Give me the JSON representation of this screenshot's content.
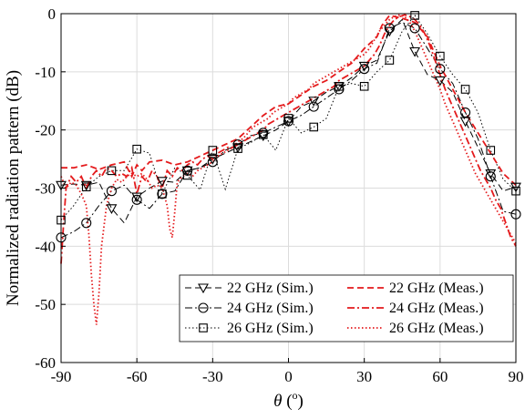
{
  "chart_data": {
    "type": "line",
    "xlabel": "θ (°)",
    "xlabel_parts": {
      "symbol": "θ",
      "unit_open": " (",
      "unit_sup": "o",
      "unit_close": ")"
    },
    "ylabel": "Normalized radiation pattern (dB)",
    "xlim": [
      -90,
      90
    ],
    "ylim": [
      -60,
      0
    ],
    "x_ticks": [
      -90,
      -60,
      -30,
      0,
      30,
      60,
      90
    ],
    "y_ticks": [
      0,
      -10,
      -20,
      -30,
      -40,
      -50,
      -60
    ],
    "grid": true,
    "legend_position": "bottom-right",
    "series": [
      {
        "name": "22 GHz (Sim.)",
        "color": "#000000",
        "dash": "dash",
        "marker": "triangle-down",
        "x": [
          -90,
          -85,
          -80,
          -75,
          -70,
          -65,
          -60,
          -55,
          -50,
          -45,
          -40,
          -35,
          -30,
          -25,
          -20,
          -15,
          -10,
          -5,
          0,
          5,
          10,
          15,
          20,
          25,
          30,
          35,
          40,
          45,
          50,
          55,
          60,
          65,
          70,
          75,
          80,
          85,
          90
        ],
        "y": [
          -29.5,
          -29.3,
          -29.5,
          -29,
          -33.5,
          -36,
          -31.5,
          -30,
          -28.8,
          -29,
          -27,
          -26.5,
          -25,
          -24,
          -23,
          -22,
          -21,
          -20,
          -18.5,
          -16,
          -15,
          -13.5,
          -12.5,
          -11,
          -9,
          -8,
          -3,
          -1,
          -6.5,
          -10.5,
          -11.5,
          -13.5,
          -18.5,
          -23,
          -27.5,
          -30.5,
          -29.8
        ]
      },
      {
        "name": "24 GHz (Sim.)",
        "color": "#000000",
        "dash": "dashdot",
        "marker": "circle",
        "x": [
          -90,
          -85,
          -80,
          -75,
          -70,
          -65,
          -60,
          -55,
          -50,
          -45,
          -40,
          -35,
          -30,
          -25,
          -20,
          -15,
          -10,
          -5,
          0,
          5,
          10,
          15,
          20,
          25,
          30,
          35,
          40,
          45,
          50,
          55,
          60,
          65,
          70,
          75,
          80,
          85,
          90
        ],
        "y": [
          -38.5,
          -37.5,
          -36,
          -33,
          -30.5,
          -29.5,
          -32,
          -33.5,
          -31,
          -30.5,
          -27,
          -26.5,
          -25.5,
          -23.5,
          -22.5,
          -21,
          -20.5,
          -19.5,
          -18.5,
          -17.5,
          -16,
          -14.5,
          -13,
          -11.5,
          -9.5,
          -8.5,
          -2.5,
          -1.5,
          -2.5,
          -6,
          -9.5,
          -12,
          -17,
          -21.5,
          -28,
          -34,
          -34.5
        ]
      },
      {
        "name": "26 GHz (Sim.)",
        "color": "#000000",
        "dash": "dot",
        "marker": "square",
        "x": [
          -90,
          -85,
          -80,
          -75,
          -70,
          -65,
          -60,
          -55,
          -50,
          -45,
          -40,
          -35,
          -30,
          -25,
          -20,
          -15,
          -10,
          -5,
          0,
          5,
          10,
          15,
          20,
          25,
          30,
          35,
          40,
          45,
          50,
          55,
          60,
          65,
          70,
          75,
          80,
          85,
          90
        ],
        "y": [
          -35.5,
          -33,
          -29.8,
          -28,
          -27,
          -27,
          -23.3,
          -24,
          -31,
          -26.5,
          -27.8,
          -30.3,
          -23.5,
          -30.2,
          -23.2,
          -22.2,
          -20.8,
          -23.5,
          -18,
          -20.5,
          -19.5,
          -18,
          -12.5,
          -12,
          -12.5,
          -10,
          -8,
          -3,
          -0.3,
          -3.5,
          -7.3,
          -10.5,
          -13,
          -17,
          -23.5,
          -28.5,
          -30.5
        ]
      },
      {
        "name": "22 GHz (Meas.)",
        "color": "#e41a1c",
        "dash": "dash",
        "marker": "none",
        "x": [
          -90,
          -85,
          -80,
          -75,
          -70,
          -65,
          -62,
          -60,
          -58,
          -55,
          -50,
          -45,
          -40,
          -35,
          -30,
          -25,
          -20,
          -15,
          -10,
          -5,
          0,
          5,
          10,
          15,
          20,
          25,
          30,
          35,
          37,
          40,
          45,
          50,
          55,
          60,
          65,
          70,
          75,
          80,
          85,
          90
        ],
        "y": [
          -26.5,
          -26.5,
          -26,
          -26.8,
          -26,
          -25.5,
          -28,
          -26,
          -27,
          -25.5,
          -25.2,
          -26,
          -25.5,
          -24.5,
          -23.5,
          -22.5,
          -21.5,
          -19.5,
          -17.5,
          -16,
          -15.5,
          -14,
          -12.5,
          -11.5,
          -10,
          -8.5,
          -6,
          -4,
          -2,
          -0.3,
          -0.8,
          -1.5,
          -4,
          -9,
          -13,
          -17,
          -20.5,
          -24,
          -27.5,
          -29.5
        ]
      },
      {
        "name": "24 GHz (Meas.)",
        "color": "#e41a1c",
        "dash": "dashdot",
        "marker": "none",
        "x": [
          -90,
          -89,
          -88,
          -86,
          -84,
          -82,
          -80,
          -78,
          -76,
          -74,
          -72,
          -70,
          -68,
          -66,
          -64,
          -62,
          -60,
          -58,
          -56,
          -54,
          -52,
          -50,
          -48,
          -46,
          -44,
          -42,
          -40,
          -38,
          -36,
          -34,
          -32,
          -30,
          -28,
          -26,
          -24,
          -22,
          -20,
          -18,
          -16,
          -14,
          -12,
          -10,
          -8,
          -6,
          -4,
          -2,
          0,
          2,
          4,
          6,
          8,
          10,
          12,
          14,
          16,
          18,
          20,
          22,
          24,
          26,
          28,
          30,
          32,
          34,
          36,
          38,
          40,
          42,
          44,
          46,
          48,
          50,
          52,
          54,
          56,
          58,
          60,
          62,
          64,
          66,
          68,
          70,
          72,
          74,
          76,
          78,
          80,
          82,
          84,
          86,
          88,
          90
        ],
        "y": [
          -43,
          -36,
          -30,
          -28,
          -29,
          -28,
          -30,
          -28,
          -27,
          -28,
          -26.5,
          -27,
          -28,
          -27.5,
          -28,
          -26.5,
          -31,
          -28,
          -29,
          -27,
          -28,
          -30,
          -27,
          -28,
          -26.5,
          -27,
          -26,
          -25.5,
          -26,
          -25,
          -24.5,
          -25,
          -24,
          -23.5,
          -23,
          -23,
          -22.5,
          -22,
          -21.5,
          -21,
          -20.5,
          -20,
          -19,
          -18.5,
          -18,
          -17.5,
          -17,
          -16.5,
          -16,
          -15.5,
          -15,
          -14.5,
          -14,
          -13.5,
          -13,
          -12.5,
          -11.5,
          -11,
          -10.5,
          -10,
          -9.5,
          -9,
          -8,
          -7,
          -5.5,
          -3.5,
          -2,
          -1,
          -0.5,
          -0.2,
          -0.5,
          -1,
          -2,
          -3.5,
          -5.5,
          -8,
          -10.5,
          -13,
          -15,
          -17,
          -19,
          -21,
          -23,
          -25,
          -27,
          -28.5,
          -30,
          -32,
          -33.5,
          -36,
          -38.5,
          -40
        ]
      },
      {
        "name": "26 GHz (Meas.)",
        "color": "#e41a1c",
        "dash": "dot",
        "marker": "none",
        "x": [
          -90,
          -88,
          -86,
          -84,
          -82,
          -80,
          -79,
          -78,
          -77,
          -76,
          -75,
          -74,
          -72,
          -70,
          -68,
          -66,
          -64,
          -62,
          -60,
          -58,
          -56,
          -54,
          -52,
          -50,
          -48,
          -47,
          -46,
          -45,
          -44,
          -42,
          -40,
          -38,
          -36,
          -34,
          -32,
          -30,
          -28,
          -26,
          -24,
          -22,
          -20,
          -18,
          -16,
          -14,
          -12,
          -10,
          -8,
          -6,
          -4,
          -2,
          0,
          2,
          4,
          6,
          8,
          10,
          12,
          14,
          16,
          18,
          20,
          22,
          24,
          26,
          28,
          30,
          32,
          34,
          36,
          38,
          40,
          42,
          44,
          46,
          48,
          50,
          52,
          54,
          56,
          58,
          60,
          62,
          64,
          66,
          68,
          70,
          72,
          74,
          76,
          78,
          80,
          82,
          84,
          86,
          88,
          90
        ],
        "y": [
          -28,
          -30,
          -29,
          -29.5,
          -31,
          -33,
          -38,
          -45,
          -50,
          -53.5,
          -48,
          -40,
          -33,
          -30,
          -28.5,
          -29,
          -28,
          -27.5,
          -28,
          -27.5,
          -28.5,
          -30,
          -29.5,
          -30,
          -33,
          -37,
          -38.5,
          -34,
          -29,
          -28,
          -27.5,
          -28,
          -27,
          -26.5,
          -26,
          -25.5,
          -24.5,
          -24,
          -23.5,
          -23,
          -22,
          -21.5,
          -20.5,
          -19.5,
          -19,
          -18.5,
          -18,
          -17,
          -16.5,
          -16,
          -15.5,
          -14.5,
          -14,
          -13.5,
          -13,
          -12,
          -11.5,
          -11,
          -10.5,
          -10,
          -9.5,
          -9,
          -8.5,
          -8,
          -7.5,
          -7,
          -6,
          -4.5,
          -3,
          -2,
          -1,
          -0.5,
          -0.2,
          -0.5,
          -1.5,
          -3,
          -5,
          -7,
          -9,
          -11,
          -13,
          -15.5,
          -17.5,
          -19.5,
          -21.5,
          -23.5,
          -25.5,
          -27.5,
          -29,
          -30.5,
          -32,
          -33.5,
          -35,
          -36.5,
          -38,
          -39.5
        ]
      }
    ]
  }
}
